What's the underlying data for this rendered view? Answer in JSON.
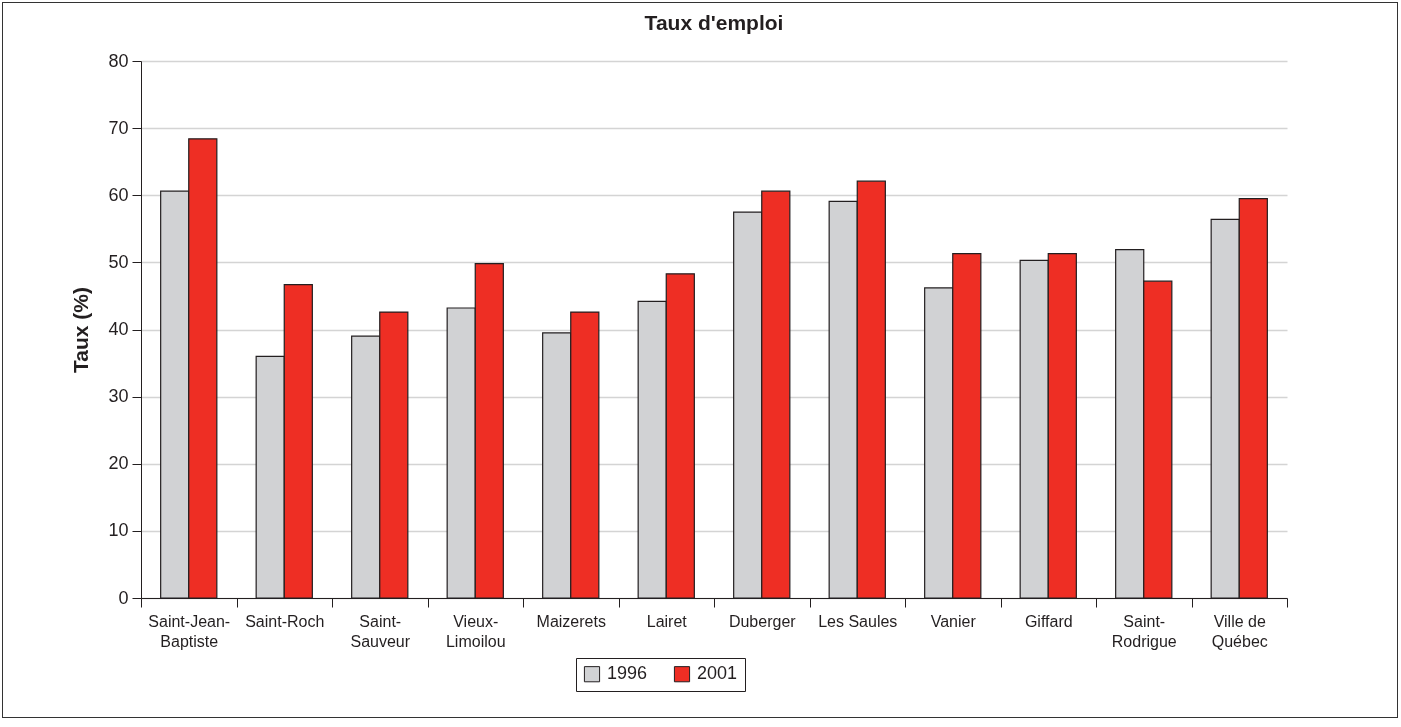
{
  "chart_data": {
    "type": "bar",
    "title": "Taux d'emploi",
    "ylabel": "Taux (%)",
    "categories": [
      "Saint-Jean-Baptiste",
      "Saint-Roch",
      "Saint-Sauveur",
      "Vieux-Limoilou",
      "Maizerets",
      "Lairet",
      "Duberger",
      "Les Saules",
      "Vanier",
      "Giffard",
      "Saint-Rodrigue",
      "Ville de Québec"
    ],
    "series": [
      {
        "name": "1996",
        "color": "#d1d2d4",
        "values": [
          60.6,
          36.0,
          39.0,
          43.2,
          39.5,
          44.2,
          57.5,
          59.1,
          46.2,
          50.3,
          51.9,
          56.4
        ]
      },
      {
        "name": "2001",
        "color": "#ee2e24",
        "values": [
          68.4,
          46.7,
          42.6,
          49.8,
          42.6,
          48.3,
          60.6,
          62.1,
          51.3,
          51.3,
          47.2,
          59.5
        ]
      }
    ],
    "ylim": [
      0,
      80
    ],
    "yticks": [
      0,
      10,
      20,
      30,
      40,
      50,
      60,
      70,
      80
    ],
    "grid": "y",
    "legend": "bottom"
  }
}
